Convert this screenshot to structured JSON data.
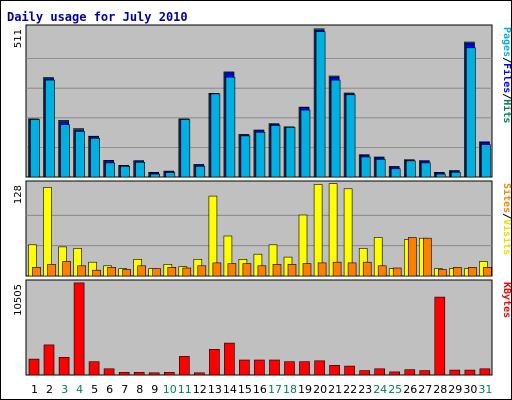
{
  "title": "Daily usage for July 2010",
  "chart_data": [
    {
      "type": "bar",
      "panel": "top",
      "ymax_label": "511",
      "ylim": [
        0,
        511
      ],
      "grid": true,
      "side_legend": [
        {
          "text": "Pages",
          "color": "#00b0e0"
        },
        {
          "text": "/",
          "color": "#000000"
        },
        {
          "text": "Files",
          "color": "#0000ff"
        },
        {
          "text": "/",
          "color": "#000000"
        },
        {
          "text": "Hits",
          "color": "#00805c"
        }
      ],
      "categories": [
        "1",
        "2",
        "3",
        "4",
        "5",
        "6",
        "7",
        "8",
        "9",
        "10",
        "11",
        "12",
        "13",
        "14",
        "15",
        "16",
        "17",
        "18",
        "19",
        "20",
        "21",
        "22",
        "23",
        "24",
        "25",
        "26",
        "27",
        "28",
        "29",
        "30",
        "31"
      ],
      "series": [
        {
          "key": "hits",
          "color": "#00805c",
          "values": [
            198,
            339,
            193,
            165,
            139,
            57,
            40,
            56,
            16,
            20,
            198,
            43,
            285,
            358,
            145,
            160,
            182,
            171,
            238,
            505,
            344,
            286,
            76,
            68,
            36,
            59,
            56,
            16,
            22,
            460,
            120
          ]
        },
        {
          "key": "files",
          "color": "#0000ff",
          "values": [
            196,
            335,
            188,
            160,
            137,
            55,
            38,
            54,
            14,
            18,
            196,
            41,
            283,
            355,
            143,
            158,
            180,
            169,
            236,
            500,
            340,
            283,
            74,
            66,
            34,
            57,
            54,
            14,
            20,
            455,
            118
          ]
        },
        {
          "key": "pages",
          "color": "#00b0e0",
          "values": [
            196,
            330,
            178,
            155,
            132,
            48,
            36,
            50,
            10,
            15,
            196,
            36,
            283,
            340,
            140,
            152,
            175,
            169,
            228,
            495,
            330,
            280,
            68,
            60,
            28,
            55,
            48,
            10,
            16,
            440,
            110
          ]
        }
      ]
    },
    {
      "type": "bar",
      "panel": "middle",
      "ymax_label": "128",
      "ylim": [
        0,
        128
      ],
      "grid": true,
      "side_legend": [
        {
          "text": "Sites",
          "color": "#ff8000"
        },
        {
          "text": "/",
          "color": "#000000"
        },
        {
          "text": "Visits",
          "color": "#e0e000"
        }
      ],
      "categories": [
        "1",
        "2",
        "3",
        "4",
        "5",
        "6",
        "7",
        "8",
        "9",
        "10",
        "11",
        "12",
        "13",
        "14",
        "15",
        "16",
        "17",
        "18",
        "19",
        "20",
        "21",
        "22",
        "23",
        "24",
        "25",
        "26",
        "27",
        "28",
        "29",
        "30",
        "31"
      ],
      "series": [
        {
          "key": "visits",
          "color": "#ffff00",
          "values": [
            43,
            122,
            40,
            38,
            19,
            14,
            10,
            23,
            10,
            16,
            13,
            23,
            110,
            55,
            23,
            30,
            43,
            26,
            84,
            126,
            127,
            120,
            38,
            53,
            10,
            50,
            52,
            10,
            10,
            10,
            20
          ]
        },
        {
          "key": "sites",
          "color": "#ff8000",
          "values": [
            12,
            16,
            20,
            14,
            8,
            12,
            9,
            14,
            10,
            12,
            11,
            14,
            18,
            17,
            17,
            14,
            16,
            16,
            17,
            18,
            19,
            18,
            19,
            14,
            11,
            53,
            52,
            9,
            12,
            12,
            12
          ]
        }
      ]
    },
    {
      "type": "bar",
      "panel": "bottom",
      "ymax_label": "10505",
      "ylim": [
        0,
        10505
      ],
      "grid": false,
      "side_legend": [
        {
          "text": "KBytes",
          "color": "#ff0000"
        }
      ],
      "categories": [
        "1",
        "2",
        "3",
        "4",
        "5",
        "6",
        "7",
        "8",
        "9",
        "10",
        "11",
        "12",
        "13",
        "14",
        "15",
        "16",
        "17",
        "18",
        "19",
        "20",
        "21",
        "22",
        "23",
        "24",
        "25",
        "26",
        "27",
        "28",
        "29",
        "30",
        "31"
      ],
      "series": [
        {
          "key": "kbytes",
          "color": "#ff0000",
          "values": [
            1800,
            3400,
            2000,
            10400,
            1500,
            700,
            300,
            300,
            250,
            300,
            2100,
            250,
            2900,
            3600,
            1700,
            1700,
            1700,
            1500,
            1500,
            1600,
            1100,
            1000,
            500,
            700,
            350,
            600,
            500,
            8800,
            550,
            550,
            700
          ]
        }
      ]
    }
  ],
  "x_axis": {
    "labels": [
      "1",
      "2",
      "3",
      "4",
      "5",
      "6",
      "7",
      "8",
      "9",
      "10",
      "11",
      "12",
      "13",
      "14",
      "15",
      "16",
      "17",
      "18",
      "19",
      "20",
      "21",
      "22",
      "23",
      "24",
      "25",
      "26",
      "27",
      "28",
      "29",
      "30",
      "31"
    ],
    "weekend_days": [
      "3",
      "4",
      "10",
      "11",
      "17",
      "18",
      "24",
      "25",
      "31"
    ],
    "weekday_color": "#000000",
    "weekend_color": "#00805c"
  },
  "colors": {
    "panel_bg": "#c0c0c0",
    "gridline": "#808080",
    "bar_outline": "#000000"
  }
}
